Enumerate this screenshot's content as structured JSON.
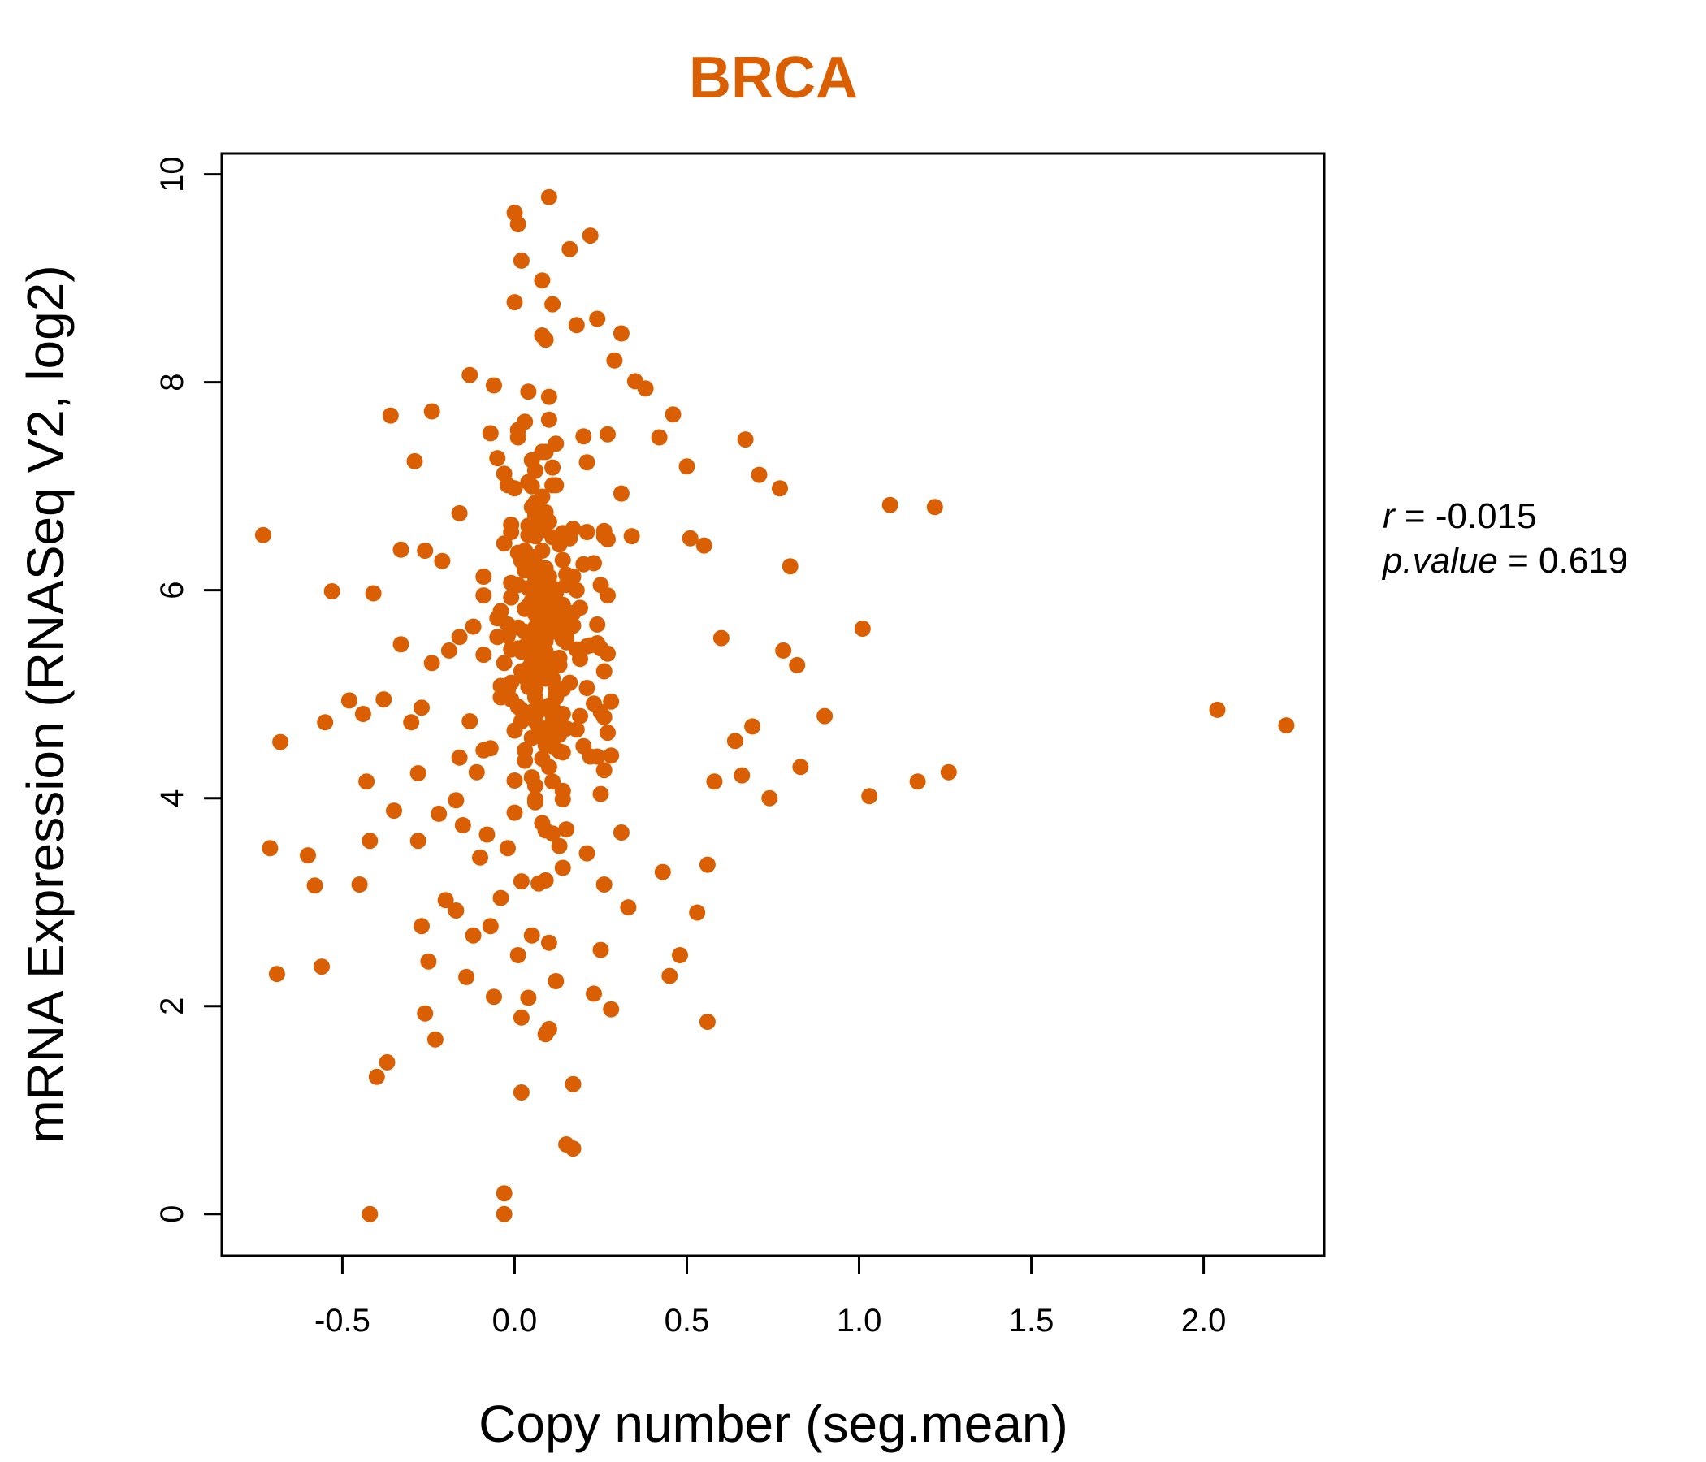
{
  "colors": {
    "point": "#d95f02",
    "title": "#d95f02"
  },
  "chart_data": {
    "type": "scatter",
    "title": "BRCA",
    "xlabel": "Copy number (seg.mean)",
    "ylabel": "mRNA Expression (RNASeq V2, log2)",
    "xlim": [
      -0.85,
      2.35
    ],
    "ylim": [
      -0.4,
      10.2
    ],
    "xticks": [
      -0.5,
      0.0,
      0.5,
      1.0,
      1.5,
      2.0
    ],
    "xtick_labels": [
      "-0.5",
      "0.0",
      "0.5",
      "1.0",
      "1.5",
      "2.0"
    ],
    "yticks": [
      0,
      2,
      4,
      6,
      8,
      10
    ],
    "ytick_labels": [
      "0",
      "2",
      "4",
      "6",
      "8",
      "10"
    ],
    "grid": false,
    "stats": {
      "r_label": "r",
      "r_value": "-0.015",
      "p_label": "p.value",
      "p_value": "0.619"
    },
    "points": [
      [
        -0.73,
        6.53
      ],
      [
        -0.71,
        3.52
      ],
      [
        -0.69,
        2.31
      ],
      [
        -0.68,
        4.54
      ],
      [
        -0.6,
        3.45
      ],
      [
        -0.58,
        3.16
      ],
      [
        -0.56,
        2.38
      ],
      [
        -0.55,
        4.73
      ],
      [
        -0.53,
        5.99
      ],
      [
        -0.48,
        4.94
      ],
      [
        -0.45,
        3.17
      ],
      [
        -0.44,
        4.81
      ],
      [
        -0.43,
        4.16
      ],
      [
        -0.42,
        3.59
      ],
      [
        -0.42,
        0.0
      ],
      [
        -0.41,
        5.97
      ],
      [
        -0.4,
        1.32
      ],
      [
        -0.38,
        4.95
      ],
      [
        -0.37,
        1.46
      ],
      [
        -0.36,
        7.68
      ],
      [
        -0.35,
        3.88
      ],
      [
        -0.33,
        5.48
      ],
      [
        -0.33,
        6.39
      ],
      [
        -0.3,
        4.73
      ],
      [
        -0.29,
        7.24
      ],
      [
        -0.28,
        3.59
      ],
      [
        -0.28,
        4.24
      ],
      [
        -0.27,
        2.77
      ],
      [
        -0.26,
        1.93
      ],
      [
        -0.26,
        6.38
      ],
      [
        -0.25,
        2.43
      ],
      [
        -0.24,
        5.3
      ],
      [
        -0.24,
        7.72
      ],
      [
        -0.23,
        1.68
      ],
      [
        -0.22,
        3.85
      ],
      [
        -0.21,
        6.28
      ],
      [
        -0.2,
        3.02
      ],
      [
        -0.19,
        5.42
      ],
      [
        -0.17,
        2.92
      ],
      [
        -0.16,
        6.74
      ],
      [
        -0.15,
        3.74
      ],
      [
        -0.14,
        2.28
      ],
      [
        -0.13,
        8.07
      ],
      [
        -0.12,
        2.68
      ],
      [
        -0.11,
        4.25
      ],
      [
        -0.1,
        3.43
      ],
      [
        -0.09,
        6.13
      ],
      [
        -0.07,
        2.77
      ],
      [
        -0.07,
        4.48
      ],
      [
        -0.06,
        7.97
      ],
      [
        -0.06,
        2.09
      ],
      [
        -0.05,
        5.55
      ],
      [
        -0.04,
        3.04
      ],
      [
        -0.03,
        0.2
      ],
      [
        -0.03,
        0.0
      ],
      [
        -0.02,
        3.52
      ],
      [
        0.0,
        4.65
      ],
      [
        0.0,
        6.98
      ],
      [
        0.0,
        8.77
      ],
      [
        0.0,
        9.63
      ],
      [
        0.01,
        9.52
      ],
      [
        0.01,
        2.49
      ],
      [
        0.02,
        3.2
      ],
      [
        0.02,
        1.17
      ],
      [
        0.02,
        9.17
      ],
      [
        0.02,
        1.89
      ],
      [
        0.04,
        2.08
      ],
      [
        0.04,
        7.91
      ],
      [
        0.05,
        6.22
      ],
      [
        0.05,
        2.68
      ],
      [
        0.06,
        5.44
      ],
      [
        0.07,
        3.18
      ],
      [
        0.08,
        8.98
      ],
      [
        0.09,
        1.73
      ],
      [
        0.1,
        1.78
      ],
      [
        0.1,
        9.78
      ],
      [
        0.1,
        2.61
      ],
      [
        0.11,
        8.75
      ],
      [
        0.12,
        2.24
      ],
      [
        0.14,
        4.07
      ],
      [
        0.15,
        0.67
      ],
      [
        0.16,
        9.28
      ],
      [
        0.17,
        0.63
      ],
      [
        0.17,
        1.25
      ],
      [
        0.18,
        8.55
      ],
      [
        0.2,
        7.48
      ],
      [
        0.22,
        9.41
      ],
      [
        0.23,
        2.12
      ],
      [
        0.24,
        8.61
      ],
      [
        0.25,
        2.54
      ],
      [
        0.26,
        3.17
      ],
      [
        0.28,
        1.97
      ],
      [
        0.29,
        8.21
      ],
      [
        0.31,
        8.47
      ],
      [
        0.33,
        2.95
      ],
      [
        0.35,
        8.01
      ],
      [
        0.38,
        7.94
      ],
      [
        0.42,
        7.47
      ],
      [
        0.43,
        3.29
      ],
      [
        0.45,
        2.29
      ],
      [
        0.46,
        7.69
      ],
      [
        0.48,
        2.49
      ],
      [
        0.5,
        7.19
      ],
      [
        0.51,
        6.5
      ],
      [
        0.53,
        2.9
      ],
      [
        0.55,
        6.43
      ],
      [
        0.56,
        1.85
      ],
      [
        0.56,
        3.36
      ],
      [
        0.58,
        4.16
      ],
      [
        0.6,
        5.54
      ],
      [
        0.64,
        4.55
      ],
      [
        0.66,
        4.22
      ],
      [
        0.67,
        7.45
      ],
      [
        0.69,
        4.69
      ],
      [
        0.71,
        7.11
      ],
      [
        0.74,
        4.0
      ],
      [
        0.77,
        6.98
      ],
      [
        0.78,
        5.42
      ],
      [
        0.8,
        6.23
      ],
      [
        0.82,
        5.28
      ],
      [
        0.83,
        4.3
      ],
      [
        0.9,
        4.79
      ],
      [
        1.01,
        5.63
      ],
      [
        1.03,
        4.02
      ],
      [
        1.09,
        6.82
      ],
      [
        1.17,
        4.16
      ],
      [
        1.22,
        6.8
      ],
      [
        1.26,
        4.25
      ],
      [
        2.04,
        4.85
      ],
      [
        2.24,
        4.7
      ],
      [
        0.31,
        6.93
      ],
      [
        -0.27,
        4.87
      ],
      [
        0.01,
        7.47
      ],
      [
        0.1,
        5.83
      ],
      [
        0.24,
        4.4
      ],
      [
        0.14,
        4.44
      ],
      [
        0.03,
        7.62
      ],
      [
        0.11,
        4.59
      ],
      [
        0.26,
        4.27
      ],
      [
        0.0,
        4.17
      ],
      [
        0.02,
        5.22
      ],
      [
        0.12,
        4.97
      ],
      [
        0.07,
        6.23
      ],
      [
        -0.0,
        3.86
      ],
      [
        0.08,
        3.76
      ],
      [
        0.06,
        4.12
      ],
      [
        0.27,
        5.95
      ],
      [
        0.1,
        7.64
      ],
      [
        0.14,
        5.76
      ],
      [
        0.02,
        5.41
      ],
      [
        0.09,
        6.75
      ],
      [
        0.1,
        7.86
      ],
      [
        -0.04,
        5.08
      ],
      [
        0.15,
        5.57
      ],
      [
        0.25,
        4.04
      ],
      [
        0.14,
        6.29
      ],
      [
        -0.12,
        5.65
      ],
      [
        -0.05,
        7.27
      ],
      [
        -0.01,
        5.11
      ],
      [
        0.12,
        5.02
      ],
      [
        0.06,
        3.99
      ],
      [
        0.14,
        5.53
      ],
      [
        0.31,
        3.67
      ],
      [
        0.09,
        8.41
      ],
      [
        0.21,
        3.47
      ],
      [
        -0.04,
        4.97
      ],
      [
        -0.02,
        5.04
      ],
      [
        0.11,
        5.34
      ],
      [
        0.13,
        4.45
      ],
      [
        0.27,
        4.63
      ],
      [
        0.13,
        5.69
      ],
      [
        0.28,
        4.93
      ],
      [
        0.22,
        4.4
      ],
      [
        0.25,
        4.83
      ],
      [
        0.04,
        6.53
      ],
      [
        0.08,
        6.9
      ],
      [
        0.08,
        8.45
      ],
      [
        -0.08,
        3.65
      ],
      [
        0.13,
        6.48
      ],
      [
        0.11,
        4.8
      ],
      [
        0.25,
        6.05
      ],
      [
        0.18,
        6.0
      ],
      [
        0.05,
        7.25
      ],
      [
        0.13,
        3.54
      ],
      [
        0.09,
        3.69
      ],
      [
        -0.02,
        7.01
      ],
      [
        0.06,
        5.21
      ],
      [
        0.17,
        6.59
      ],
      [
        -0.01,
        4.95
      ],
      [
        0.27,
        6.49
      ],
      [
        -0.01,
        6.63
      ],
      [
        0.26,
        4.78
      ],
      [
        0.12,
        7.01
      ],
      [
        -0.07,
        7.51
      ],
      [
        0.03,
        5.46
      ],
      [
        0.11,
        4.16
      ],
      [
        0.21,
        7.23
      ],
      [
        0.08,
        4.64
      ],
      [
        0.15,
        4.67
      ],
      [
        -0.17,
        3.98
      ],
      [
        0.05,
        5.36
      ],
      [
        -0.04,
        5.8
      ],
      [
        0.27,
        7.5
      ],
      [
        0.06,
        4.97
      ],
      [
        0.23,
        4.91
      ],
      [
        0.14,
        6.55
      ],
      [
        -0.03,
        6.45
      ],
      [
        0.05,
        6.8
      ],
      [
        0.21,
        5.06
      ],
      [
        -0.01,
        5.93
      ],
      [
        0.08,
        6.58
      ],
      [
        0.1,
        4.87
      ],
      [
        0.2,
        6.25
      ],
      [
        0.14,
        3.99
      ],
      [
        0.24,
        5.48
      ],
      [
        0.27,
        5.39
      ],
      [
        0.1,
        6.66
      ],
      [
        0.07,
        5.84
      ],
      [
        0.02,
        4.74
      ],
      [
        0.12,
        7.41
      ],
      [
        0.07,
        4.69
      ],
      [
        0.34,
        6.52
      ],
      [
        0.09,
        7.33
      ],
      [
        -0.13,
        4.74
      ],
      [
        0.04,
        6.62
      ],
      [
        0.18,
        4.66
      ],
      [
        0.1,
        4.3
      ],
      [
        0.1,
        4.89
      ],
      [
        0.15,
        3.7
      ],
      [
        0.26,
        6.52
      ],
      [
        0.13,
        5.28
      ],
      [
        0.08,
        5.42
      ],
      [
        0.11,
        3.66
      ],
      [
        -0.16,
        4.39
      ],
      [
        -0.09,
        5.38
      ],
      [
        -0.03,
        7.12
      ],
      [
        0.02,
        6.28
      ],
      [
        0.14,
        3.33
      ],
      [
        0.03,
        4.36
      ],
      [
        0.14,
        4.81
      ],
      [
        0.11,
        4.85
      ],
      [
        0.21,
        5.46
      ],
      [
        0.01,
        5.64
      ],
      [
        0.2,
        4.5
      ],
      [
        0.13,
        6.44
      ],
      [
        0.03,
        6.38
      ],
      [
        0.06,
        4.74
      ],
      [
        0.05,
        4.78
      ],
      [
        0.06,
        6.52
      ],
      [
        0.17,
        5.66
      ],
      [
        0.12,
        6.01
      ],
      [
        0.21,
        6.56
      ],
      [
        0.06,
        7.15
      ],
      [
        0.1,
        5.67
      ],
      [
        0.06,
        3.96
      ],
      [
        0.06,
        5.77
      ],
      [
        0.05,
        6.32
      ],
      [
        0.06,
        5.19
      ],
      [
        0.28,
        4.41
      ],
      [
        0.06,
        5.44
      ],
      [
        0.01,
        7.54
      ],
      [
        0.16,
        6.5
      ],
      [
        0.03,
        4.46
      ],
      [
        0.08,
        6.38
      ],
      [
        0.17,
        5.78
      ],
      [
        0.24,
        5.67
      ],
      [
        0.06,
        5.13
      ],
      [
        0.08,
        7.33
      ],
      [
        0.06,
        6.84
      ],
      [
        -0.16,
        5.55
      ],
      [
        0.18,
        5.43
      ],
      [
        0.19,
        4.79
      ],
      [
        0.04,
        7.04
      ],
      [
        0.1,
        5.92
      ],
      [
        0.15,
        5.5
      ],
      [
        0.09,
        5.15
      ],
      [
        -0.09,
        4.46
      ],
      [
        0.26,
        5.22
      ],
      [
        0.26,
        6.57
      ],
      [
        0.25,
        5.44
      ],
      [
        0.17,
        6.13
      ],
      [
        0.1,
        6.13
      ],
      [
        0.02,
        4.85
      ],
      [
        0.23,
        6.26
      ],
      [
        0.05,
        4.2
      ],
      [
        -0.01,
        6.07
      ],
      [
        -0.01,
        6.56
      ],
      [
        0.22,
        5.47
      ],
      [
        0.08,
        5.59
      ],
      [
        0.11,
        6.51
      ],
      [
        0.11,
        4.87
      ],
      [
        0.15,
        6.15
      ],
      [
        0.14,
        5.05
      ],
      [
        0.1,
        5.83
      ],
      [
        0.19,
        5.34
      ],
      [
        0.11,
        7.18
      ],
      [
        0.1,
        6.04
      ],
      [
        0.14,
        5.86
      ],
      [
        0.07,
        5.33
      ],
      [
        0.13,
        5.35
      ],
      [
        0.11,
        5.15
      ],
      [
        0.14,
        5.53
      ],
      [
        0.01,
        4.88
      ],
      [
        -0.09,
        5.95
      ],
      [
        -0.03,
        5.3
      ],
      [
        0.06,
        5.05
      ],
      [
        -0.01,
        5.43
      ],
      [
        0.11,
        7.01
      ],
      [
        0.07,
        4.84
      ],
      [
        0.12,
        5.87
      ],
      [
        0.09,
        3.21
      ],
      [
        0.19,
        5.83
      ],
      [
        0.05,
        4.58
      ],
      [
        0.15,
        5.76
      ],
      [
        0.11,
        4.5
      ],
      [
        0.11,
        4.73
      ],
      [
        0.12,
        5.98
      ],
      [
        0.01,
        6.36
      ],
      [
        0.09,
        4.51
      ],
      [
        -0.02,
        5.56
      ],
      [
        0.16,
        5.11
      ],
      [
        0.03,
        5.16
      ],
      [
        0.03,
        6.21
      ],
      [
        0.24,
        5.49
      ],
      [
        0.07,
        6.71
      ],
      [
        0.12,
        5.9
      ],
      [
        0.12,
        5.8
      ],
      [
        0.12,
        5.6
      ],
      [
        0.01,
        5.44
      ],
      [
        0.12,
        5.62
      ],
      [
        0.1,
        5.35
      ],
      [
        0.06,
        6.72
      ],
      [
        0.08,
        4.87
      ],
      [
        0.08,
        5.98
      ],
      [
        0.06,
        5.49
      ],
      [
        0.09,
        6.21
      ],
      [
        -0.05,
        5.73
      ],
      [
        0.15,
        6.05
      ],
      [
        0.1,
        5.6
      ],
      [
        0.05,
        7.0
      ],
      [
        0.12,
        5.06
      ],
      [
        0.05,
        4.83
      ],
      [
        0.03,
        6.19
      ],
      [
        0.13,
        4.61
      ],
      [
        0.04,
        6.02
      ],
      [
        0.05,
        5.57
      ],
      [
        0.04,
        5.85
      ],
      [
        0.07,
        5.98
      ],
      [
        0.06,
        5.56
      ],
      [
        0.05,
        5.9
      ],
      [
        0.09,
        5.23
      ],
      [
        0.12,
        4.71
      ],
      [
        -0.02,
        5.67
      ],
      [
        0.03,
        5.82
      ],
      [
        0.01,
        6.05
      ],
      [
        0.1,
        5.62
      ],
      [
        0.04,
        5.25
      ],
      [
        0.08,
        5.28
      ],
      [
        0.08,
        4.38
      ],
      [
        0.07,
        6.15
      ],
      [
        0.09,
        5.41
      ],
      [
        0.06,
        5.33
      ],
      [
        0.08,
        5.46
      ],
      [
        0.07,
        5.15
      ],
      [
        0.09,
        5.51
      ],
      [
        0.03,
        5.6
      ],
      [
        0.07,
        5.78
      ],
      [
        0.06,
        6.12
      ],
      [
        0.08,
        6.02
      ],
      [
        0.05,
        5.32
      ],
      [
        0.07,
        5.69
      ],
      [
        0.04,
        5.07
      ],
      [
        0.06,
        5.86
      ],
      [
        0.09,
        5.74
      ],
      [
        0.08,
        5.53
      ],
      [
        0.06,
        5.64
      ],
      [
        0.05,
        5.45
      ],
      [
        0.07,
        5.39
      ],
      [
        0.07,
        5.85
      ],
      [
        0.06,
        5.58
      ]
    ]
  }
}
